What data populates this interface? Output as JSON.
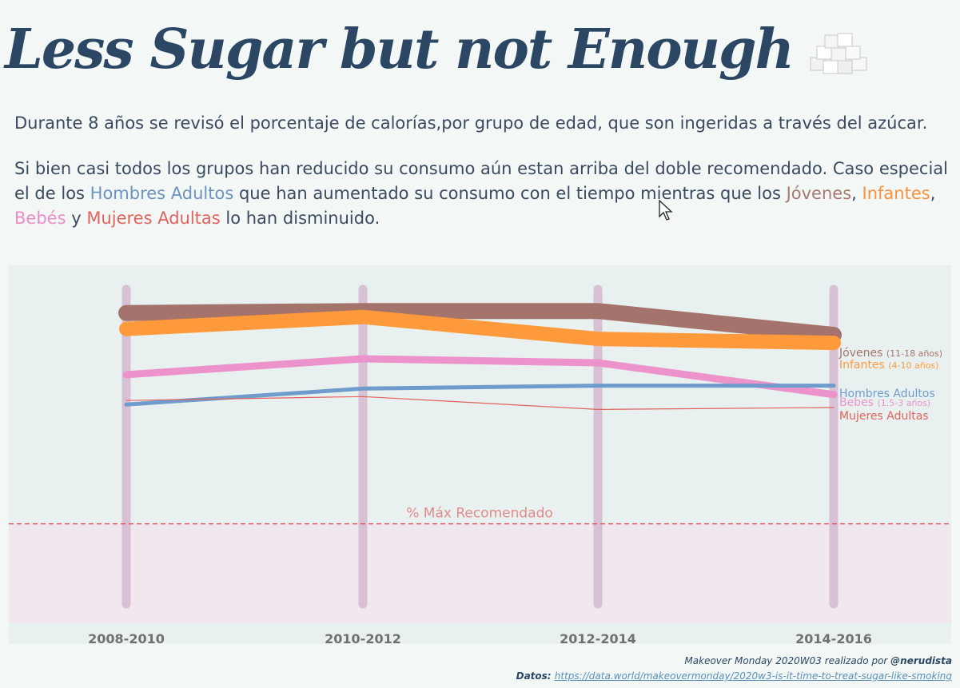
{
  "title": "Less Sugar but not Enough",
  "intro": {
    "line1": "Durante 8 años se revisó el porcentaje de calorías,por grupo de edad, que son ingeridas a través del azúcar.",
    "line2_a": "Si bien casi todos los grupos han reducido su consumo aún estan arriba del doble recomendado. Caso especial el de los ",
    "hl_men": "Hombres Adultos",
    "line2_b": " que han aumentado su consumo con el tiempo mientras que los ",
    "hl_young": "Jóvenes",
    "comma1": ",",
    "hl_kids": "Infantes",
    "comma2": ", ",
    "hl_baby": "Bebés",
    "and": " y ",
    "hl_women": "Mujeres Adultas",
    "line2_c": " lo han disminuido."
  },
  "footer": {
    "credit_prefix": "Makeover Monday 2020W03 realizado por ",
    "credit_author": "@nerudista",
    "data_label": "Datos: ",
    "data_url": "https://data.world/makeovermonday/2020w3-is-it-time-to-treat-sugar-like-smoking"
  },
  "chart_data": {
    "type": "line",
    "categories": [
      "2008-2010",
      "2010-2012",
      "2012-2014",
      "2014-2016"
    ],
    "ylim": [
      0,
      18
    ],
    "reference_line": {
      "label": "% Máx Recomendado",
      "value": 5
    },
    "series": [
      {
        "name": "Jóvenes",
        "sub": "(11-18 años)",
        "values": [
          15.6,
          15.7,
          15.7,
          14.5
        ],
        "color": "#a4736c",
        "width": 20
      },
      {
        "name": "Infantes",
        "sub": "(4-10 años)",
        "values": [
          14.8,
          15.4,
          14.3,
          14.1
        ],
        "color": "#ff9a3c",
        "width": 18
      },
      {
        "name": "Bebes",
        "sub": "(1.5-3 años)",
        "values": [
          12.5,
          13.3,
          13.1,
          11.5
        ],
        "color": "#ec93cc",
        "width": 9
      },
      {
        "name": "Hombres Adultos",
        "sub": "",
        "values": [
          11.0,
          11.8,
          11.95,
          11.95
        ],
        "color": "#6f9ccc",
        "width": 5
      },
      {
        "name": "Mujeres Adultas",
        "sub": "",
        "values": [
          11.2,
          11.4,
          10.75,
          10.85
        ],
        "color": "#e2625c",
        "width": 1.2
      }
    ]
  }
}
